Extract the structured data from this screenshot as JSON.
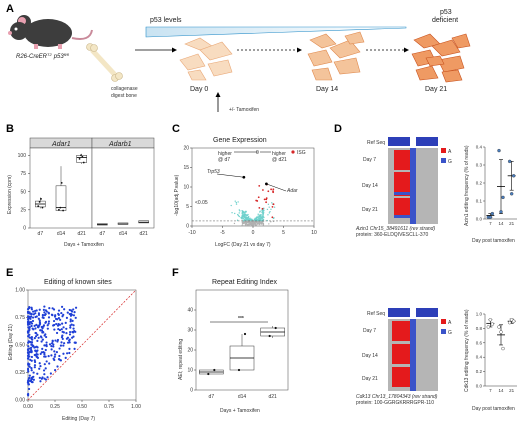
{
  "panels": {
    "A": {
      "label": "A",
      "mouse_label_line1": "R26-CreER",
      "mouse_label_sup": "T2",
      "mouse_label_line2": "p53",
      "mouse_label_sup2": "fl/fl",
      "p53_levels": "p53 levels",
      "collagenase": "collagenase",
      "digest_bone": "digest bone",
      "day0": "Day 0",
      "day14": "Day 14",
      "day21": "Day 21",
      "tamoxifen": "+/- Tamoxifen",
      "p53": "p53",
      "deficient": "deficient"
    },
    "B": {
      "label": "B",
      "title_left": "Adar1",
      "title_right": "Adarb1",
      "ylabel": "Expression (cpm)",
      "xlabel": "Days + Tamoxifen"
    },
    "C": {
      "label": "C",
      "title": "Gene Expression",
      "ylabel": "-log10(adj.P.value)",
      "xlabel": "LogFC (Day 21 vs day 7)",
      "higher_d7": "higher",
      "at_d7": "@ d7",
      "higher_d21": "higher",
      "at_d21": "@ d21",
      "zero_mark": "0",
      "isg_legend": "ISG",
      "trp53": "Trp53",
      "adar": "Adar",
      "threshold": "<0.05"
    },
    "D": {
      "label": "D",
      "ref_seq": "Ref Seq",
      "day7": "Day 7",
      "day14": "Day 14",
      "day21": "Day 21",
      "legend_a": "A",
      "legend_g": "G",
      "gene_info_line1": "Azin1 Chr15_38491611 (rev strand)",
      "gene_info_line2": "protein: 360-ELDQIVESCLL-370",
      "plot_ylabel": "Azin1 editing frequency (% of reads)",
      "plot_xlabel": "Day post tamoxifen",
      "gene_info2_line1": "Cdk13 Chr13_17804343 (rev strand)",
      "gene_info2_line2": "protein: 100-GGRGKRRRGPR-110",
      "plot2_ylabel": "Cdk13 editing frequency (% of reads)",
      "plot2_xlabel": "Day post tamoxifen"
    },
    "E": {
      "label": "E",
      "title": "Editing of known sites",
      "xlabel": "Editing (Day 7)",
      "ylabel": "Editing (Day 21)"
    },
    "F": {
      "label": "F",
      "title": "Repeat Editing Index",
      "ylabel": "AEI; repeat editing",
      "xlabel": "Days + Tamoxifen",
      "significance": "***"
    }
  },
  "chart_data": [
    {
      "id": "B-adar1",
      "type": "box",
      "title": "Adar1",
      "categories": [
        "d7",
        "d14",
        "d21"
      ],
      "box_stats": [
        {
          "q1": 29,
          "median": 33,
          "q3": 37,
          "min": 27,
          "max": 42
        },
        {
          "q1": 24,
          "median": 28,
          "q3": 58,
          "min": 23,
          "max": 85
        },
        {
          "q1": 90,
          "median": 97,
          "q3": 100,
          "min": 88,
          "max": 102
        }
      ],
      "points": [
        [
          30,
          36,
          40,
          28
        ],
        [
          25,
          28,
          62,
          24
        ],
        [
          95,
          100,
          98,
          90
        ]
      ],
      "ylim": [
        0,
        110
      ],
      "yticks": [
        0,
        25,
        50,
        75,
        100
      ],
      "ylabel": "Expression (cpm)",
      "xlabel": "Days + Tamoxifen"
    },
    {
      "id": "B-adarb1",
      "type": "box",
      "title": "Adarb1",
      "categories": [
        "d7",
        "d14",
        "d21"
      ],
      "box_stats": [
        {
          "q1": 4,
          "median": 5,
          "q3": 6,
          "min": 4,
          "max": 6
        },
        {
          "q1": 5,
          "median": 5.5,
          "q3": 7,
          "min": 5,
          "max": 7
        },
        {
          "q1": 7,
          "median": 8,
          "q3": 10,
          "min": 7,
          "max": 10
        }
      ],
      "ylim": [
        0,
        110
      ]
    },
    {
      "id": "C-volcano",
      "type": "scatter",
      "title": "Gene Expression",
      "xlabel": "LogFC (Day 21 vs day 7)",
      "ylabel": "-log10(adj.P.value)",
      "xlim": [
        -10,
        10
      ],
      "ylim": [
        0,
        20
      ],
      "xticks": [
        -10,
        -5,
        0,
        5,
        10
      ],
      "yticks": [
        0,
        5,
        10,
        15,
        20
      ],
      "threshold_y": 1.3,
      "highlight": [
        {
          "name": "Trp53",
          "x": -1.5,
          "y": 12.5
        },
        {
          "name": "Adar",
          "x": 2.2,
          "y": 10.8
        }
      ]
    },
    {
      "id": "D-azin1",
      "type": "scatter",
      "categories": [
        "7",
        "14",
        "21"
      ],
      "means": [
        0.02,
        0.18,
        0.24
      ],
      "errors": [
        0.01,
        0.15,
        0.08
      ],
      "points": [
        [
          0.01,
          0.01,
          0.03
        ],
        [
          0.38,
          0.04,
          0.12
        ],
        [
          0.32,
          0.14,
          0.24
        ]
      ],
      "ylim": [
        0,
        0.4
      ],
      "yticks": [
        0.0,
        0.1,
        0.2,
        0.3,
        0.4
      ],
      "ylabel": "Azin1 editing frequency (% of reads)",
      "xlabel": "Day post tamoxifen"
    },
    {
      "id": "D-cdk13",
      "type": "scatter",
      "categories": [
        "7",
        "14",
        "21"
      ],
      "means": [
        0.87,
        0.71,
        0.9
      ],
      "errors": [
        0.05,
        0.14,
        0.03
      ],
      "points": [
        [
          0.82,
          0.92,
          0.86
        ],
        [
          0.82,
          0.75,
          0.52
        ],
        [
          0.88,
          0.92,
          0.9
        ]
      ],
      "ylim": [
        0,
        1.0
      ],
      "yticks": [
        0.0,
        0.2,
        0.4,
        0.6,
        0.8,
        1.0
      ],
      "ylabel": "Cdk13 editing frequency (% of reads)",
      "xlabel": "Day post tamoxifen"
    },
    {
      "id": "E-known-sites",
      "type": "scatter",
      "title": "Editing of known sites",
      "xlabel": "Editing (Day 7)",
      "ylabel": "Editing (Day 21)",
      "xlim": [
        0,
        1
      ],
      "ylim": [
        0,
        1
      ],
      "xticks": [
        0.0,
        0.25,
        0.5,
        0.75,
        1.0
      ],
      "yticks": [
        0.0,
        0.25,
        0.5,
        0.75,
        1.0
      ]
    },
    {
      "id": "F-aei",
      "type": "box",
      "title": "Repeat Editing Index",
      "categories": [
        "d7",
        "d14",
        "d21"
      ],
      "box_stats": [
        {
          "q1": 8,
          "median": 9,
          "q3": 10,
          "min": 8,
          "max": 10
        },
        {
          "q1": 10,
          "median": 16,
          "q3": 22,
          "min": 10,
          "max": 28
        },
        {
          "q1": 27,
          "median": 29,
          "q3": 31,
          "min": 26,
          "max": 32
        }
      ],
      "points": [
        [
          8,
          10
        ],
        [
          10,
          28
        ],
        [
          27,
          31
        ]
      ],
      "ylim": [
        0,
        50
      ],
      "yticks": [
        0,
        10,
        20,
        30,
        40
      ],
      "ylabel": "AEI; repeat editing",
      "xlabel": "Days + Tamoxifen",
      "significance": "***"
    }
  ],
  "colors": {
    "isg": "#d62728",
    "volcano_sig": "#6fd1cc",
    "volcano_ns": "#b0b0b0",
    "editing": "#1f3fd6",
    "diag": "#d62728",
    "A_base": "#e41a1c",
    "G_base": "#3a53c9",
    "dots_blue": "#4a7fc1",
    "cell_fill": "#f6cda6",
    "cell_stroke": "#e07d43"
  }
}
